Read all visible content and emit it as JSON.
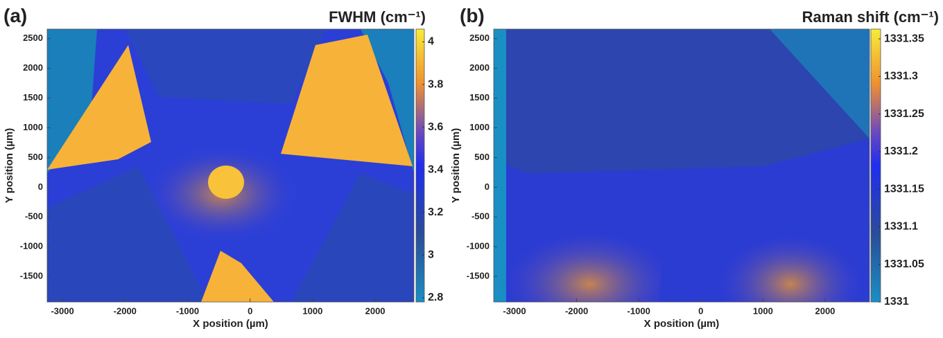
{
  "chart_data": [
    {
      "type": "heatmap",
      "panel_label": "(a)",
      "title": "FWHM (cm⁻¹)",
      "x_label": "X position (µm)",
      "y_label": "Y position (µm)",
      "xlim": [
        -3245,
        2620
      ],
      "xticks": [
        -3000,
        -2000,
        -1000,
        0,
        1000,
        2000
      ],
      "ylim": [
        -1930,
        2660
      ],
      "yticks": [
        -1500,
        -1000,
        -500,
        0,
        500,
        1000,
        1500,
        2000,
        2500
      ],
      "clim": [
        2.78,
        4.06
      ],
      "cticks": [
        2.8,
        3,
        3.2,
        3.4,
        3.6,
        3.8,
        4
      ]
    },
    {
      "type": "heatmap",
      "panel_label": "(b)",
      "title": "Raman shift (cm⁻¹)",
      "x_label": "X position (µm)",
      "y_label": "Y position (µm)",
      "xlim": [
        -3335,
        2715
      ],
      "xticks": [
        -3000,
        -2000,
        -1000,
        0,
        1000,
        2000
      ],
      "ylim": [
        -1930,
        2660
      ],
      "yticks": [
        -1500,
        -1000,
        -500,
        0,
        500,
        1000,
        1500,
        2000,
        2500
      ],
      "clim": [
        1331,
        1331.363
      ],
      "cticks": [
        1331,
        1331.05,
        1331.1,
        1331.15,
        1331.2,
        1331.25,
        1331.3,
        1331.35
      ]
    }
  ]
}
